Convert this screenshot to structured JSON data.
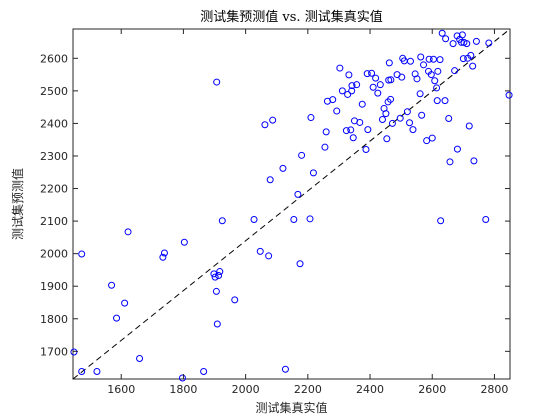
{
  "chart_data": {
    "type": "scatter",
    "title": "测试集预测值 vs. 测试集真实值",
    "xlabel": "测试集真实值",
    "ylabel": "测试集预测值",
    "xlim": [
      1445,
      2850
    ],
    "ylim": [
      1615,
      2690
    ],
    "xticks": [
      1600,
      1800,
      2000,
      2200,
      2400,
      2600,
      2800
    ],
    "yticks": [
      1700,
      1800,
      1900,
      2000,
      2100,
      2200,
      2300,
      2400,
      2500,
      2600
    ],
    "grid": false,
    "legend": "none",
    "marker_color": "#0000ff",
    "reference_line": {
      "style": "dashed",
      "color": "#000000",
      "from": [
        1445,
        1615
      ],
      "to": [
        2850,
        2690
      ]
    },
    "series": [
      {
        "points": [
          [
            1448,
            1698
          ],
          [
            1473,
            1638
          ],
          [
            1473,
            1999
          ],
          [
            1522,
            1638
          ],
          [
            1569,
            1903
          ],
          [
            1585,
            1802
          ],
          [
            1611,
            1848
          ],
          [
            1622,
            2067
          ],
          [
            1659,
            1678
          ],
          [
            1734,
            1989
          ],
          [
            1739,
            2002
          ],
          [
            1797,
            1618
          ],
          [
            1803,
            2035
          ],
          [
            1865,
            1638
          ],
          [
            1898,
            1938
          ],
          [
            1902,
            1928
          ],
          [
            1906,
            1884
          ],
          [
            1907,
            2527
          ],
          [
            1909,
            1784
          ],
          [
            1913,
            1933
          ],
          [
            1917,
            1945
          ],
          [
            1925,
            2101
          ],
          [
            1965,
            1858
          ],
          [
            2027,
            2105
          ],
          [
            2047,
            2007
          ],
          [
            2062,
            2396
          ],
          [
            2074,
            1993
          ],
          [
            2079,
            2227
          ],
          [
            2087,
            2410
          ],
          [
            2120,
            2262
          ],
          [
            2128,
            1645
          ],
          [
            2155,
            2105
          ],
          [
            2168,
            2182
          ],
          [
            2175,
            1969
          ],
          [
            2180,
            2302
          ],
          [
            2207,
            2107
          ],
          [
            2210,
            2418
          ],
          [
            2218,
            2248
          ],
          [
            2255,
            2327
          ],
          [
            2259,
            2374
          ],
          [
            2263,
            2468
          ],
          [
            2280,
            2473
          ],
          [
            2293,
            2438
          ],
          [
            2303,
            2570
          ],
          [
            2311,
            2500
          ],
          [
            2324,
            2378
          ],
          [
            2328,
            2489
          ],
          [
            2332,
            2549
          ],
          [
            2338,
            2380
          ],
          [
            2341,
            2500
          ],
          [
            2342,
            2516
          ],
          [
            2346,
            2356
          ],
          [
            2350,
            2408
          ],
          [
            2357,
            2519
          ],
          [
            2367,
            2403
          ],
          [
            2375,
            2459
          ],
          [
            2387,
            2320
          ],
          [
            2391,
            2553
          ],
          [
            2393,
            2381
          ],
          [
            2405,
            2554
          ],
          [
            2410,
            2511
          ],
          [
            2418,
            2539
          ],
          [
            2425,
            2493
          ],
          [
            2433,
            2519
          ],
          [
            2440,
            2412
          ],
          [
            2445,
            2446
          ],
          [
            2451,
            2430
          ],
          [
            2454,
            2353
          ],
          [
            2458,
            2466
          ],
          [
            2460,
            2533
          ],
          [
            2462,
            2586
          ],
          [
            2466,
            2474
          ],
          [
            2467,
            2534
          ],
          [
            2472,
            2400
          ],
          [
            2487,
            2550
          ],
          [
            2497,
            2416
          ],
          [
            2502,
            2542
          ],
          [
            2505,
            2600
          ],
          [
            2510,
            2592
          ],
          [
            2520,
            2436
          ],
          [
            2527,
            2402
          ],
          [
            2530,
            2591
          ],
          [
            2538,
            2381
          ],
          [
            2545,
            2552
          ],
          [
            2551,
            2537
          ],
          [
            2561,
            2491
          ],
          [
            2563,
            2604
          ],
          [
            2566,
            2425
          ],
          [
            2572,
            2580
          ],
          [
            2582,
            2347
          ],
          [
            2588,
            2560
          ],
          [
            2590,
            2597
          ],
          [
            2597,
            2550
          ],
          [
            2600,
            2355
          ],
          [
            2604,
            2597
          ],
          [
            2608,
            2531
          ],
          [
            2614,
            2509
          ],
          [
            2616,
            2470
          ],
          [
            2618,
            2560
          ],
          [
            2625,
            2596
          ],
          [
            2627,
            2101
          ],
          [
            2632,
            2677
          ],
          [
            2641,
            2470
          ],
          [
            2643,
            2660
          ],
          [
            2653,
            2415
          ],
          [
            2657,
            2282
          ],
          [
            2667,
            2645
          ],
          [
            2672,
            2562
          ],
          [
            2680,
            2669
          ],
          [
            2681,
            2321
          ],
          [
            2688,
            2658
          ],
          [
            2694,
            2649
          ],
          [
            2697,
            2672
          ],
          [
            2700,
            2599
          ],
          [
            2702,
            2649
          ],
          [
            2711,
            2645
          ],
          [
            2714,
            2600
          ],
          [
            2719,
            2392
          ],
          [
            2724,
            2609
          ],
          [
            2730,
            2576
          ],
          [
            2734,
            2285
          ],
          [
            2742,
            2652
          ],
          [
            2772,
            2105
          ],
          [
            2782,
            2647
          ],
          [
            2847,
            2487
          ]
        ]
      }
    ]
  }
}
